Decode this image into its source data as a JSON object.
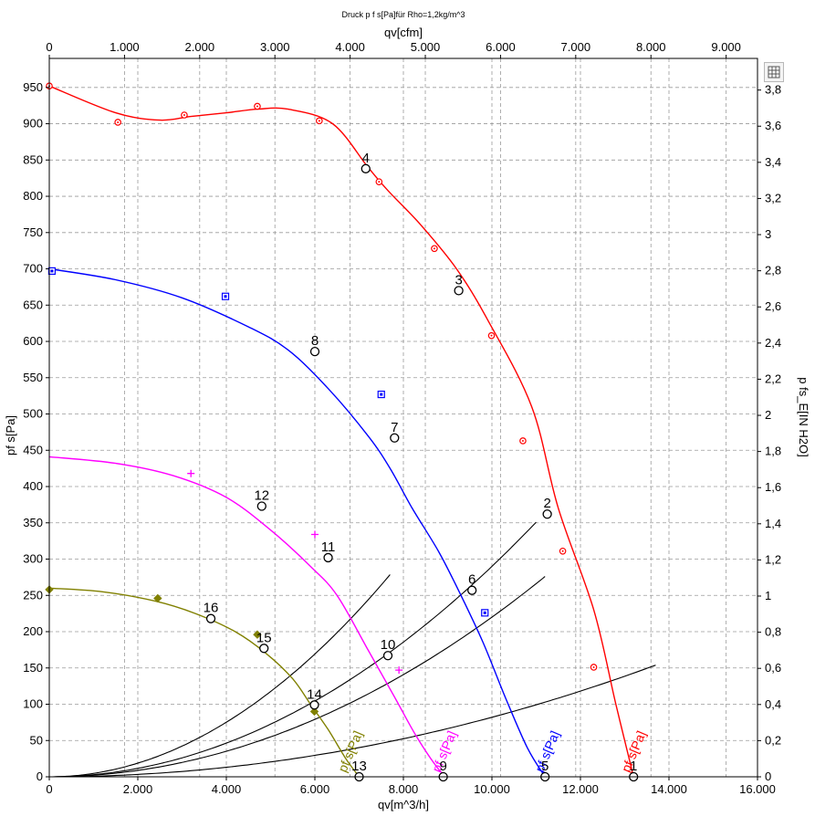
{
  "chart_data": {
    "type": "line",
    "title": "Druck p f s[Pa]für Rho=1,2kg/m^3",
    "xlabel": "qv[m^3/h]",
    "x2label": "qv[cfm]",
    "ylabel": "pf s[Pa]",
    "y2label": "p fs_E[IN H2O]",
    "xlim": [
      0,
      16000
    ],
    "ylim": [
      0,
      990
    ],
    "x2lim": [
      0,
      9417
    ],
    "y2lim": [
      0,
      3.975
    ],
    "x_ticks": [
      "0",
      "2.000",
      "4.000",
      "6.000",
      "8.000",
      "10.000",
      "12.000",
      "14.000",
      "16.000"
    ],
    "y_ticks": [
      "0",
      "50",
      "100",
      "150",
      "200",
      "250",
      "300",
      "350",
      "400",
      "450",
      "500",
      "550",
      "600",
      "650",
      "700",
      "750",
      "800",
      "850",
      "900",
      "950"
    ],
    "x2_ticks": [
      "0",
      "1.000",
      "2.000",
      "3.000",
      "4.000",
      "5.000",
      "6.000",
      "7.000",
      "8.000",
      "9.000"
    ],
    "y2_ticks": [
      "0",
      "0,2",
      "0,4",
      "0,6",
      "0,8",
      "1",
      "1,2",
      "1,4",
      "1,6",
      "1,8",
      "2",
      "2,2",
      "2,4",
      "2,6",
      "2,8",
      "3",
      "3,2",
      "3,4",
      "3,6",
      "3,8"
    ],
    "grid": true,
    "series": [
      {
        "name": "pf s[Pa]",
        "color": "#ff0000",
        "marker": "circle-dot",
        "x": [
          0,
          1500,
          2500,
          3200,
          4000,
          4700,
          5400,
          6400,
          7200,
          7650,
          8400,
          9200,
          9900,
          10900,
          11500,
          12300,
          12800,
          13200
        ],
        "y": [
          952,
          915,
          905,
          910,
          915,
          920,
          920,
          900,
          840,
          808,
          760,
          700,
          630,
          510,
          370,
          230,
          100,
          0
        ]
      },
      {
        "name": "pf s[Pa]",
        "color": "#0000ff",
        "marker": "square",
        "x": [
          0,
          1500,
          3000,
          4500,
          5400,
          6300,
          7200,
          7700,
          8200,
          8800,
          9300,
          9800,
          10300,
          10800,
          11200
        ],
        "y": [
          700,
          685,
          660,
          620,
          588,
          535,
          470,
          425,
          370,
          310,
          250,
          185,
          110,
          40,
          0
        ]
      },
      {
        "name": "pf s[Pa]",
        "color": "#ff00ff",
        "marker": "plus",
        "x": [
          0,
          1500,
          2800,
          4000,
          5000,
          5900,
          6500,
          7200,
          7800,
          8300,
          8800,
          9000
        ],
        "y": [
          441,
          432,
          415,
          385,
          340,
          290,
          250,
          175,
          110,
          55,
          10,
          0
        ]
      },
      {
        "name": "pf s[Pa]",
        "color": "#808000",
        "marker": "diamond",
        "x": [
          0,
          1200,
          2400,
          3300,
          4200,
          4900,
          5500,
          5900,
          6300,
          6700,
          7000
        ],
        "y": [
          260,
          255,
          242,
          225,
          200,
          170,
          135,
          100,
          65,
          25,
          0
        ]
      }
    ],
    "measured_points": [
      {
        "series": 0,
        "x": [
          0,
          1550,
          3050,
          4700,
          6100,
          7450,
          8700,
          9990,
          10700,
          11600,
          12300
        ],
        "y": [
          952,
          902,
          912,
          924,
          904,
          820,
          728,
          608,
          463,
          311,
          151
        ]
      },
      {
        "series": 1,
        "x": [
          60,
          3980,
          7500,
          9840
        ],
        "y": [
          697,
          662,
          527,
          226
        ]
      },
      {
        "series": 2,
        "x": [
          3200,
          6000,
          7900
        ],
        "y": [
          418,
          334,
          147
        ]
      },
      {
        "series": 3,
        "x": [
          0,
          2450,
          4700,
          5990
        ],
        "y": [
          258,
          246,
          196,
          90
        ]
      }
    ],
    "series_labels": [
      {
        "text": "pf s[Pa]",
        "color": "#ff0000",
        "x": 13100,
        "y": 5
      },
      {
        "text": "pf s[Pa]",
        "color": "#0000ff",
        "x": 11150,
        "y": 5
      },
      {
        "text": "pf s[Pa]",
        "color": "#ff00ff",
        "x": 8820,
        "y": 5
      },
      {
        "text": "pf s[Pa]",
        "color": "#808000",
        "x": 6700,
        "y": 5
      }
    ],
    "system_curves": [
      {
        "a": 4.7e-06,
        "x_end": 7700
      },
      {
        "a": 2.2e-06,
        "x_end": 11200
      },
      {
        "a": 8.2e-07,
        "x_end": 13700
      },
      {
        "a": 2.9e-06,
        "x_end": 11000
      }
    ],
    "operating_points": [
      {
        "label": "1",
        "x": 13200,
        "y": 0
      },
      {
        "label": "2",
        "x": 11250,
        "y": 362
      },
      {
        "label": "3",
        "x": 9250,
        "y": 670
      },
      {
        "label": "4",
        "x": 7150,
        "y": 838
      },
      {
        "label": "5",
        "x": 11200,
        "y": 0
      },
      {
        "label": "6",
        "x": 9550,
        "y": 257
      },
      {
        "label": "7",
        "x": 7800,
        "y": 467
      },
      {
        "label": "8",
        "x": 6000,
        "y": 586
      },
      {
        "label": "9",
        "x": 8900,
        "y": 0
      },
      {
        "label": "10",
        "x": 7650,
        "y": 167
      },
      {
        "label": "11",
        "x": 6300,
        "y": 302
      },
      {
        "label": "12",
        "x": 4800,
        "y": 373
      },
      {
        "label": "13",
        "x": 7000,
        "y": 0
      },
      {
        "label": "14",
        "x": 5990,
        "y": 99
      },
      {
        "label": "15",
        "x": 4850,
        "y": 177
      },
      {
        "label": "16",
        "x": 3650,
        "y": 218
      }
    ]
  }
}
